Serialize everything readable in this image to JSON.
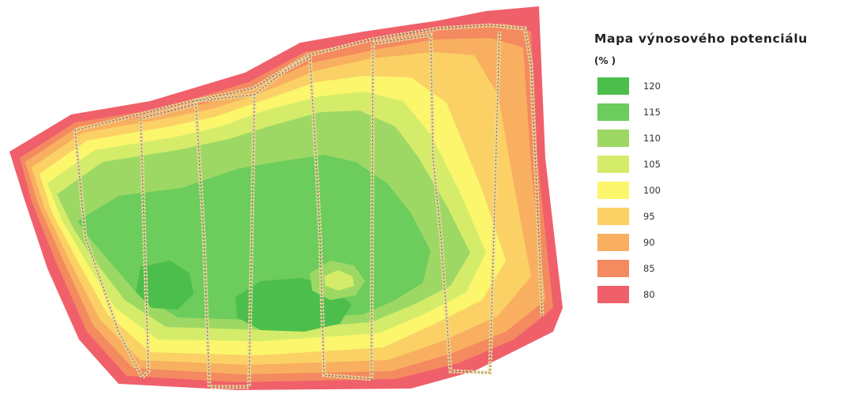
{
  "legend": {
    "title": "Mapa výnosového potenciálu",
    "unit": "(% )",
    "items": [
      {
        "label": "120",
        "color": "#4cbe4c"
      },
      {
        "label": "115",
        "color": "#6ccc5c"
      },
      {
        "label": "110",
        "color": "#9ed864"
      },
      {
        "label": "105",
        "color": "#d4ec6a"
      },
      {
        "label": "100",
        "color": "#fbf66c"
      },
      {
        "label": "95",
        "color": "#fbd166"
      },
      {
        "label": "90",
        "color": "#f8b060"
      },
      {
        "label": "85",
        "color": "#f48a60"
      },
      {
        "label": "80",
        "color": "#f0606a"
      }
    ]
  }
}
